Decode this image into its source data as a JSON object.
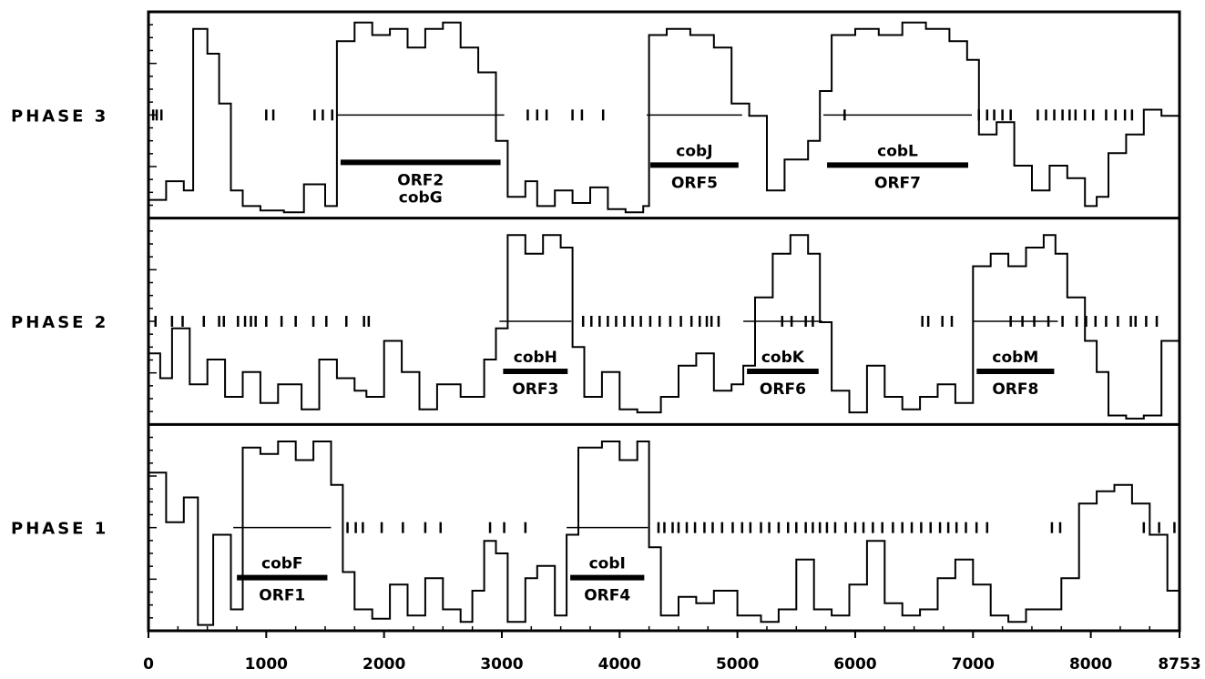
{
  "chart_data": {
    "type": "line",
    "title": "",
    "xlabel": "",
    "ylabel": "",
    "xlim": [
      0,
      8753
    ],
    "x_ticks": [
      "0",
      "1000",
      "2000",
      "3000",
      "4000",
      "5000",
      "6000",
      "7000",
      "8000",
      "8753"
    ],
    "x_tick_values": [
      0,
      1000,
      2000,
      3000,
      4000,
      5000,
      6000,
      7000,
      8000,
      8753
    ],
    "grid": false,
    "panels": [
      {
        "name": "PHASE 3",
        "orfs": [
          {
            "gene": "",
            "orf": "ORF2",
            "gene_below": "cobG",
            "start": 1600,
            "end": 3020
          },
          {
            "gene": "cobJ",
            "orf": "ORF5",
            "gene_below": "",
            "start": 4230,
            "end": 5040
          },
          {
            "gene": "cobL",
            "orf": "ORF7",
            "gene_below": "",
            "start": 5730,
            "end": 6990
          }
        ],
        "stop_codons": [
          40,
          70,
          110,
          1000,
          1060,
          1410,
          1480,
          1560,
          3220,
          3300,
          3380,
          3600,
          3680,
          3860,
          5910,
          7050,
          7120,
          7180,
          7250,
          7320,
          7550,
          7620,
          7690,
          7760,
          7820,
          7870,
          7950,
          8020,
          8130,
          8210,
          8290,
          8350
        ],
        "profile": [
          [
            0,
            25
          ],
          [
            150,
            55
          ],
          [
            300,
            40
          ],
          [
            380,
            300
          ],
          [
            500,
            260
          ],
          [
            600,
            180
          ],
          [
            700,
            40
          ],
          [
            800,
            15
          ],
          [
            950,
            8
          ],
          [
            1150,
            5
          ],
          [
            1320,
            50
          ],
          [
            1500,
            15
          ],
          [
            1600,
            280
          ],
          [
            1750,
            310
          ],
          [
            1900,
            290
          ],
          [
            2050,
            300
          ],
          [
            2200,
            270
          ],
          [
            2350,
            300
          ],
          [
            2500,
            310
          ],
          [
            2650,
            270
          ],
          [
            2800,
            230
          ],
          [
            2950,
            120
          ],
          [
            3050,
            30
          ],
          [
            3200,
            55
          ],
          [
            3300,
            15
          ],
          [
            3450,
            40
          ],
          [
            3600,
            20
          ],
          [
            3750,
            45
          ],
          [
            3900,
            10
          ],
          [
            4050,
            5
          ],
          [
            4200,
            15
          ],
          [
            4250,
            290
          ],
          [
            4400,
            300
          ],
          [
            4600,
            290
          ],
          [
            4800,
            270
          ],
          [
            4950,
            180
          ],
          [
            5100,
            160
          ],
          [
            5250,
            40
          ],
          [
            5400,
            90
          ],
          [
            5600,
            120
          ],
          [
            5700,
            200
          ],
          [
            5800,
            290
          ],
          [
            6000,
            300
          ],
          [
            6200,
            290
          ],
          [
            6400,
            310
          ],
          [
            6600,
            300
          ],
          [
            6800,
            280
          ],
          [
            6950,
            250
          ],
          [
            7050,
            130
          ],
          [
            7200,
            150
          ],
          [
            7350,
            80
          ],
          [
            7500,
            40
          ],
          [
            7650,
            80
          ],
          [
            7800,
            60
          ],
          [
            7950,
            15
          ],
          [
            8050,
            30
          ],
          [
            8150,
            100
          ],
          [
            8300,
            130
          ],
          [
            8450,
            170
          ],
          [
            8600,
            160
          ],
          [
            8753,
            150
          ]
        ]
      },
      {
        "name": "PHASE 2",
        "orfs": [
          {
            "gene": "cobH",
            "orf": "ORF3",
            "gene_below": "",
            "start": 2980,
            "end": 3590
          },
          {
            "gene": "cobK",
            "orf": "ORF6",
            "gene_below": "",
            "start": 5050,
            "end": 5720
          },
          {
            "gene": "cobM",
            "orf": "ORF8",
            "gene_below": "",
            "start": 7000,
            "end": 7720
          }
        ],
        "stop_codons": [
          60,
          200,
          290,
          470,
          600,
          640,
          760,
          820,
          870,
          910,
          1000,
          1130,
          1250,
          1400,
          1510,
          1680,
          1830,
          1870,
          3690,
          3760,
          3830,
          3900,
          3970,
          4040,
          4110,
          4180,
          4260,
          4340,
          4430,
          4520,
          4610,
          4680,
          4740,
          4780,
          4840,
          5380,
          5460,
          5580,
          5640,
          6570,
          6620,
          6740,
          6820,
          7320,
          7420,
          7520,
          7640,
          7760,
          7880,
          7960,
          8040,
          8130,
          8230,
          8340,
          8380,
          8470,
          8560
        ],
        "profile": [
          [
            0,
            110
          ],
          [
            100,
            70
          ],
          [
            200,
            150
          ],
          [
            350,
            60
          ],
          [
            500,
            100
          ],
          [
            650,
            40
          ],
          [
            800,
            80
          ],
          [
            950,
            30
          ],
          [
            1100,
            60
          ],
          [
            1300,
            20
          ],
          [
            1450,
            100
          ],
          [
            1600,
            70
          ],
          [
            1750,
            50
          ],
          [
            1850,
            40
          ],
          [
            2000,
            130
          ],
          [
            2150,
            80
          ],
          [
            2300,
            20
          ],
          [
            2450,
            60
          ],
          [
            2650,
            40
          ],
          [
            2850,
            100
          ],
          [
            2950,
            150
          ],
          [
            3050,
            300
          ],
          [
            3200,
            270
          ],
          [
            3350,
            300
          ],
          [
            3500,
            280
          ],
          [
            3600,
            120
          ],
          [
            3700,
            40
          ],
          [
            3850,
            80
          ],
          [
            4000,
            20
          ],
          [
            4150,
            15
          ],
          [
            4350,
            40
          ],
          [
            4500,
            90
          ],
          [
            4650,
            110
          ],
          [
            4800,
            50
          ],
          [
            4950,
            60
          ],
          [
            5050,
            90
          ],
          [
            5150,
            200
          ],
          [
            5300,
            270
          ],
          [
            5450,
            300
          ],
          [
            5600,
            270
          ],
          [
            5700,
            160
          ],
          [
            5800,
            50
          ],
          [
            5950,
            15
          ],
          [
            6100,
            90
          ],
          [
            6250,
            40
          ],
          [
            6400,
            20
          ],
          [
            6550,
            40
          ],
          [
            6700,
            60
          ],
          [
            6850,
            30
          ],
          [
            7000,
            250
          ],
          [
            7150,
            270
          ],
          [
            7300,
            250
          ],
          [
            7450,
            280
          ],
          [
            7600,
            300
          ],
          [
            7700,
            270
          ],
          [
            7800,
            200
          ],
          [
            7950,
            130
          ],
          [
            8050,
            80
          ],
          [
            8150,
            10
          ],
          [
            8300,
            5
          ],
          [
            8450,
            10
          ],
          [
            8600,
            130
          ],
          [
            8753,
            160
          ]
        ]
      },
      {
        "name": "PHASE 1",
        "orfs": [
          {
            "gene": "cobF",
            "orf": "ORF1",
            "gene_below": "",
            "start": 720,
            "end": 1550
          },
          {
            "gene": "cobI",
            "orf": "ORF4",
            "gene_below": "",
            "start": 3550,
            "end": 4240
          }
        ],
        "stop_codons": [
          1690,
          1760,
          1820,
          1980,
          2160,
          2350,
          2480,
          2900,
          3020,
          3200,
          4330,
          4380,
          4450,
          4500,
          4570,
          4640,
          4720,
          4790,
          4870,
          4960,
          5040,
          5110,
          5200,
          5270,
          5350,
          5430,
          5500,
          5580,
          5640,
          5700,
          5760,
          5830,
          5920,
          6000,
          6070,
          6150,
          6230,
          6320,
          6400,
          6480,
          6560,
          6640,
          6720,
          6790,
          6860,
          6940,
          7030,
          7120,
          7670,
          7740,
          8450,
          8580,
          8710
        ],
        "profile": [
          [
            0,
            250
          ],
          [
            150,
            170
          ],
          [
            300,
            210
          ],
          [
            420,
            5
          ],
          [
            550,
            150
          ],
          [
            700,
            30
          ],
          [
            800,
            290
          ],
          [
            950,
            280
          ],
          [
            1100,
            300
          ],
          [
            1250,
            270
          ],
          [
            1400,
            300
          ],
          [
            1550,
            230
          ],
          [
            1650,
            90
          ],
          [
            1750,
            30
          ],
          [
            1900,
            15
          ],
          [
            2050,
            70
          ],
          [
            2200,
            20
          ],
          [
            2350,
            80
          ],
          [
            2500,
            30
          ],
          [
            2650,
            10
          ],
          [
            2750,
            60
          ],
          [
            2850,
            140
          ],
          [
            2950,
            120
          ],
          [
            3050,
            10
          ],
          [
            3200,
            80
          ],
          [
            3300,
            100
          ],
          [
            3450,
            20
          ],
          [
            3550,
            150
          ],
          [
            3650,
            290
          ],
          [
            3850,
            300
          ],
          [
            4000,
            270
          ],
          [
            4150,
            300
          ],
          [
            4250,
            130
          ],
          [
            4350,
            20
          ],
          [
            4500,
            50
          ],
          [
            4650,
            40
          ],
          [
            4800,
            60
          ],
          [
            5000,
            20
          ],
          [
            5200,
            10
          ],
          [
            5350,
            30
          ],
          [
            5500,
            110
          ],
          [
            5650,
            30
          ],
          [
            5800,
            20
          ],
          [
            5950,
            70
          ],
          [
            6100,
            140
          ],
          [
            6250,
            40
          ],
          [
            6400,
            20
          ],
          [
            6550,
            30
          ],
          [
            6700,
            80
          ],
          [
            6850,
            110
          ],
          [
            7000,
            70
          ],
          [
            7150,
            20
          ],
          [
            7300,
            10
          ],
          [
            7450,
            30
          ],
          [
            7600,
            30
          ],
          [
            7750,
            80
          ],
          [
            7900,
            200
          ],
          [
            8050,
            220
          ],
          [
            8200,
            230
          ],
          [
            8350,
            200
          ],
          [
            8500,
            150
          ],
          [
            8650,
            60
          ],
          [
            8753,
            40
          ]
        ]
      }
    ]
  }
}
